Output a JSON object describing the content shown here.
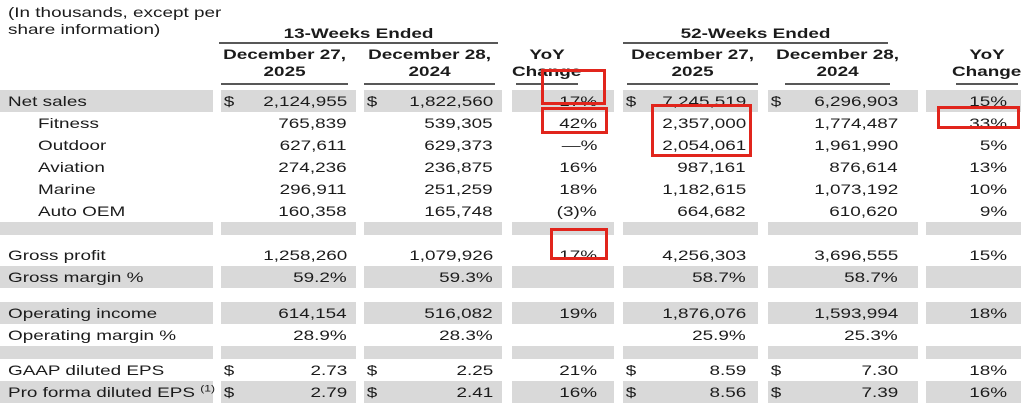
{
  "note": {
    "line1": "(In thousands, except per",
    "line2": "share information)"
  },
  "currency": "$",
  "header": {
    "group_13wk": "13-Weeks Ended",
    "group_52wk": "52-Weeks Ended",
    "date_2025_line1": "December 27,",
    "date_2025_line2": "2025",
    "date_2024_line1": "December 28,",
    "date_2024_line2": "2024",
    "yoy_line1": "YoY",
    "yoy_line2": "Change"
  },
  "columns_order": [
    "13wk-dec27-2025",
    "13wk-dec28-2024",
    "13wk-yoy-change",
    "52wk-dec27-2025",
    "52wk-dec28-2024",
    "52wk-yoy-change"
  ],
  "rows": [
    {
      "name": "net-sales",
      "label": "Net sales",
      "indent": false,
      "shade": true,
      "dollar": true,
      "values": [
        "2,124,955",
        "1,822,560",
        "17%",
        "7,245,519",
        "6,296,903",
        "15%"
      ]
    },
    {
      "name": "fitness",
      "label": "Fitness",
      "indent": true,
      "shade": false,
      "dollar": false,
      "values": [
        "765,839",
        "539,305",
        "42%",
        "2,357,000",
        "1,774,487",
        "33%"
      ]
    },
    {
      "name": "outdoor",
      "label": "Outdoor",
      "indent": true,
      "shade": false,
      "dollar": false,
      "values": [
        "627,611",
        "629,373",
        "—%",
        "2,054,061",
        "1,961,990",
        "5%"
      ]
    },
    {
      "name": "aviation",
      "label": "Aviation",
      "indent": true,
      "shade": false,
      "dollar": false,
      "values": [
        "274,236",
        "236,875",
        "16%",
        "987,161",
        "876,614",
        "13%"
      ]
    },
    {
      "name": "marine",
      "label": "Marine",
      "indent": true,
      "shade": false,
      "dollar": false,
      "values": [
        "296,911",
        "251,259",
        "18%",
        "1,182,615",
        "1,073,192",
        "10%"
      ]
    },
    {
      "name": "auto-oem",
      "label": "Auto OEM",
      "indent": true,
      "shade": false,
      "dollar": false,
      "values": [
        "160,358",
        "165,748",
        "(3)%",
        "664,682",
        "610,620",
        "9%"
      ]
    },
    {
      "type": "spacer",
      "shade": true,
      "h": 13
    },
    {
      "type": "spacer",
      "shade": false,
      "h": 9
    },
    {
      "name": "gross-profit",
      "label": "Gross profit",
      "indent": false,
      "shade": false,
      "dollar": false,
      "values": [
        "1,258,260",
        "1,079,926",
        "17%",
        "4,256,303",
        "3,696,555",
        "15%"
      ]
    },
    {
      "name": "gross-margin",
      "label": "Gross margin %",
      "indent": false,
      "shade": true,
      "dollar": false,
      "values": [
        "59.2%",
        "59.3%",
        "",
        "58.7%",
        "58.7%",
        ""
      ]
    },
    {
      "type": "spacer",
      "shade": false,
      "h": 14
    },
    {
      "name": "operating-income",
      "label": "Operating income",
      "indent": false,
      "shade": true,
      "dollar": false,
      "values": [
        "614,154",
        "516,082",
        "19%",
        "1,876,076",
        "1,593,994",
        "18%"
      ]
    },
    {
      "name": "operating-margin",
      "label": "Operating margin %",
      "indent": false,
      "shade": false,
      "dollar": false,
      "values": [
        "28.9%",
        "28.3%",
        "",
        "25.9%",
        "25.3%",
        ""
      ]
    },
    {
      "type": "spacer",
      "shade": true,
      "h": 13
    },
    {
      "name": "gaap-diluted-eps",
      "label": "GAAP diluted EPS",
      "indent": false,
      "shade": false,
      "dollar": true,
      "values": [
        "2.73",
        "2.25",
        "21%",
        "8.59",
        "7.30",
        "18%"
      ]
    },
    {
      "name": "proforma-diluted-eps",
      "label": "Pro forma diluted EPS",
      "sup": "(1)",
      "indent": false,
      "shade": true,
      "dollar": true,
      "values": [
        "2.79",
        "2.41",
        "16%",
        "8.56",
        "7.39",
        "16%"
      ]
    }
  ],
  "highlights": [
    "net-sales-13wk-yoy-change-17pct",
    "fitness-13wk-yoy-change-42pct",
    "fitness-and-outdoor-52wk-2025-values",
    "fitness-52wk-yoy-change-33pct",
    "gross-profit-13wk-yoy-change-17pct"
  ],
  "colors": {
    "row_shade": "#d9d9d9",
    "highlight_red": "#e1251c",
    "rule": "#585858",
    "text": "#1b1b1b"
  }
}
